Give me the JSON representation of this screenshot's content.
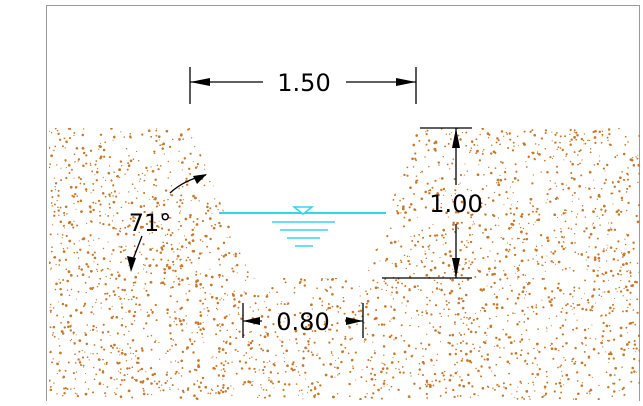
{
  "diagram": {
    "top_width": "1.50",
    "depth": "1.00",
    "bottom_width": "0.80",
    "side_angle": "71°"
  },
  "colors": {
    "soil_dots": "#c8782a",
    "water": "#33d6ea",
    "lines": "#000000",
    "frame": "#9a9a9a",
    "background": "#ffffff"
  }
}
